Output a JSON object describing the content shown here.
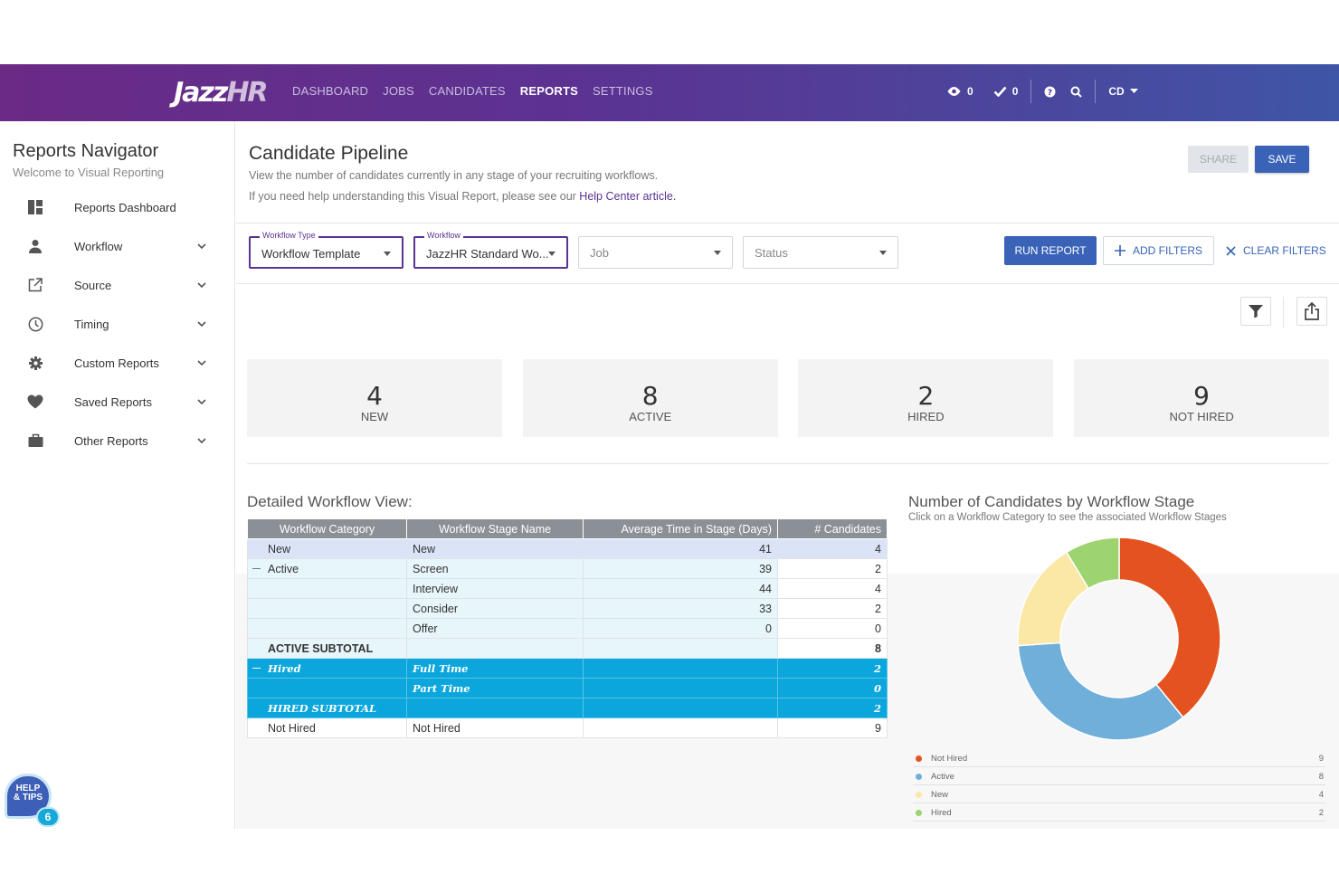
{
  "header": {
    "logo_main": "Jazz",
    "logo_suffix": "HR",
    "nav": [
      "DASHBOARD",
      "JOBS",
      "CANDIDATES",
      "REPORTS",
      "SETTINGS"
    ],
    "active_nav": "REPORTS",
    "views_count": "0",
    "tasks_count": "0",
    "user_initials": "CD"
  },
  "sidebar": {
    "title": "Reports Navigator",
    "subtitle": "Welcome to Visual Reporting",
    "items": [
      {
        "label": "Reports Dashboard",
        "icon": "dashboard-icon",
        "expandable": false
      },
      {
        "label": "Workflow",
        "icon": "person-icon",
        "expandable": true
      },
      {
        "label": "Source",
        "icon": "external-link-icon",
        "expandable": true
      },
      {
        "label": "Timing",
        "icon": "clock-icon",
        "expandable": true
      },
      {
        "label": "Custom Reports",
        "icon": "gear-icon",
        "expandable": true
      },
      {
        "label": "Saved Reports",
        "icon": "heart-icon",
        "expandable": true
      },
      {
        "label": "Other Reports",
        "icon": "briefcase-icon",
        "expandable": true
      }
    ]
  },
  "page": {
    "title": "Candidate Pipeline",
    "desc1": "View the number of candidates currently in any stage of your recruiting workflows.",
    "desc2": "If you need help understanding this Visual Report, please see our ",
    "help_link": "Help Center article.",
    "share_label": "SHARE",
    "save_label": "SAVE"
  },
  "filters": {
    "workflow_type": {
      "label": "Workflow Type",
      "value": "Workflow Template"
    },
    "workflow": {
      "label": "Workflow",
      "value": "JazzHR Standard Wo..."
    },
    "job": {
      "placeholder": "Job"
    },
    "status": {
      "placeholder": "Status"
    },
    "run_label": "RUN REPORT",
    "add_label": "ADD FILTERS",
    "clear_label": "CLEAR FILTERS"
  },
  "summary": [
    {
      "value": "4",
      "label": "NEW"
    },
    {
      "value": "8",
      "label": "ACTIVE"
    },
    {
      "value": "2",
      "label": "HIRED"
    },
    {
      "value": "9",
      "label": "NOT HIRED"
    }
  ],
  "table": {
    "title": "Detailed Workflow View:",
    "headers": [
      "Workflow Category",
      "Workflow Stage Name",
      "Average Time in Stage (Days)",
      "# Candidates"
    ],
    "rows": [
      {
        "cls": "rnew",
        "cat": "New",
        "stage": "New",
        "avg": "41",
        "count": "4"
      },
      {
        "cls": "ractive",
        "cat": "Active",
        "stage": "Screen",
        "avg": "39",
        "count": "2",
        "collapse": true
      },
      {
        "cls": "ractive",
        "cat": "",
        "stage": "Interview",
        "avg": "44",
        "count": "4"
      },
      {
        "cls": "ractive",
        "cat": "",
        "stage": "Consider",
        "avg": "33",
        "count": "2"
      },
      {
        "cls": "ractive",
        "cat": "",
        "stage": "Offer",
        "avg": "0",
        "count": "0"
      },
      {
        "cls": "ractive",
        "cat": "ACTIVE SUBTOTAL",
        "stage": "",
        "avg": "",
        "count": "8",
        "bold": true
      },
      {
        "cls": "rhired",
        "cat": "Hired",
        "stage": "Full Time",
        "avg": "",
        "count": "2",
        "collapse": true
      },
      {
        "cls": "rhired",
        "cat": "",
        "stage": "Part Time",
        "avg": "",
        "count": "0"
      },
      {
        "cls": "rhired",
        "cat": "HIRED SUBTOTAL",
        "stage": "",
        "avg": "",
        "count": "2"
      },
      {
        "cls": "rnot",
        "cat": "Not Hired",
        "stage": "Not Hired",
        "avg": "",
        "count": "9"
      }
    ]
  },
  "chart": {
    "title": "Number of Candidates by Workflow Stage",
    "subtitle": "Click on a Workflow Category to see the associated Workflow Stages"
  },
  "chart_data": {
    "type": "pie",
    "categories": [
      "Not Hired",
      "Active",
      "New",
      "Hired"
    ],
    "values": [
      9,
      8,
      4,
      2
    ],
    "colors": [
      "#e4531f",
      "#6fafd9",
      "#fbe7a6",
      "#9ed470"
    ],
    "donut": true,
    "legend": "bottom"
  },
  "help": {
    "label_line1": "HELP",
    "label_line2": "& TIPS",
    "count": "6"
  }
}
